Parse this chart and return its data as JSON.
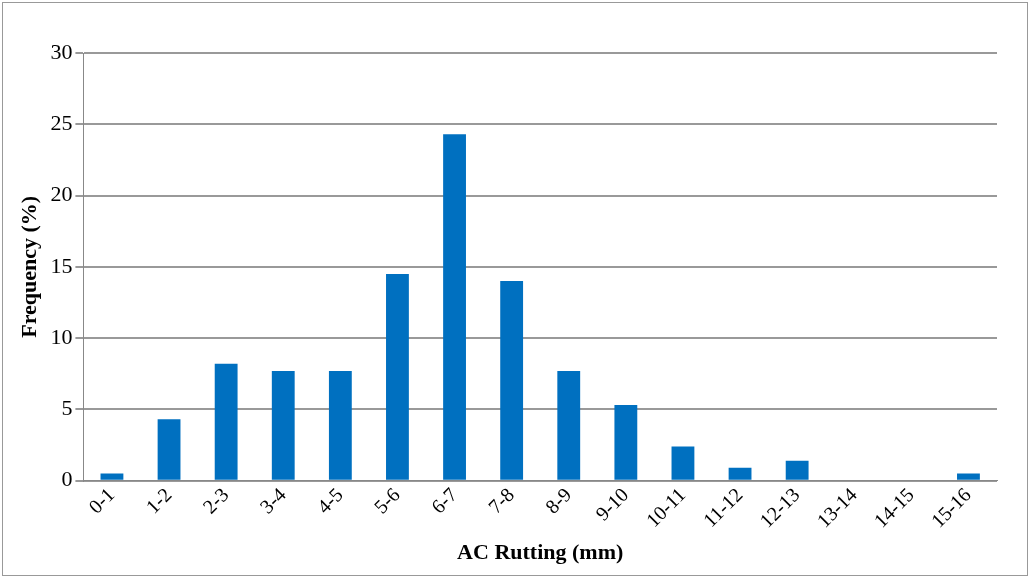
{
  "chart_data": {
    "type": "bar",
    "xlabel": "AC Rutting (mm)",
    "ylabel": "Frequency (%)",
    "categories": [
      "0-1",
      "1-2",
      "2-3",
      "3-4",
      "4-5",
      "5-6",
      "6-7",
      "7-8",
      "8-9",
      "9-10",
      "10-11",
      "11-12",
      "12-13",
      "13-14",
      "14-15",
      "15-16"
    ],
    "values": [
      0.5,
      4.3,
      8.2,
      7.7,
      7.7,
      14.5,
      24.3,
      14.0,
      7.7,
      5.3,
      2.4,
      0.9,
      1.4,
      0,
      0,
      0.5
    ],
    "color": "#0070c0",
    "ylim": [
      0,
      30
    ],
    "yticks": [
      0,
      5,
      10,
      15,
      20,
      25,
      30
    ],
    "grid": "y",
    "legend": false
  }
}
